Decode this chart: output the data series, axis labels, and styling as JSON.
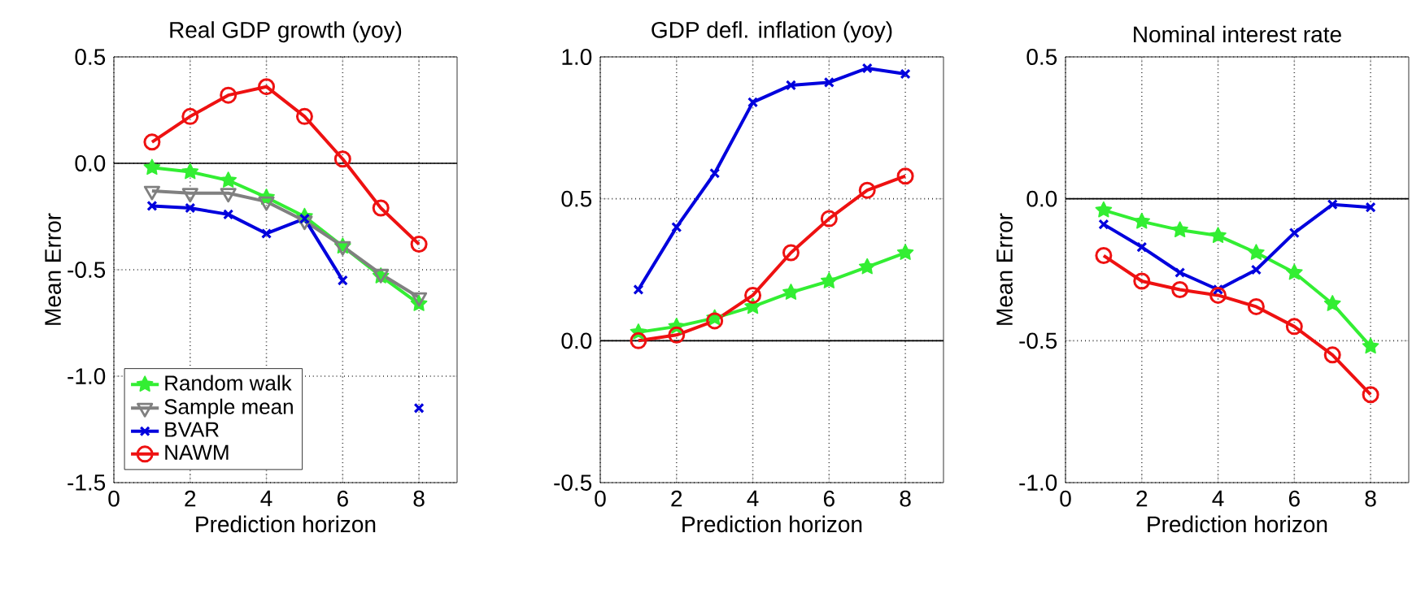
{
  "chart_data": [
    {
      "type": "line",
      "title": "Real GDP growth (yoy)",
      "xlabel": "Prediction horizon",
      "ylabel": "Mean Error",
      "x": [
        1,
        2,
        3,
        4,
        5,
        6,
        7,
        8
      ],
      "xlim": [
        0,
        9
      ],
      "xticks": [
        0,
        2,
        4,
        6,
        8
      ],
      "ylim": [
        -1.5,
        0.5
      ],
      "yticks": [
        {
          "value": -1.5,
          "label": "-1.5"
        },
        {
          "value": -1,
          "label": "-1.0"
        },
        {
          "value": -0.5,
          "label": "-0.5"
        },
        {
          "value": 0,
          "label": "0.0"
        },
        {
          "value": 0.5,
          "label": "0.5"
        }
      ],
      "grid": true,
      "legend": "bottom left",
      "line_style": "solid",
      "ref_lines": [
        {
          "axis": "y",
          "value": 0,
          "color": "#000000"
        }
      ],
      "series": [
        {
          "name": "Random walk",
          "color": "#33ee33",
          "marker": "star",
          "values": [
            -0.02,
            -0.04,
            -0.08,
            -0.16,
            -0.25,
            -0.39,
            -0.53,
            -0.66
          ]
        },
        {
          "name": "Sample mean",
          "color": "#808080",
          "marker": "triangle",
          "values": [
            -0.13,
            -0.14,
            -0.14,
            -0.18,
            -0.27,
            -0.39,
            -0.52,
            -0.63
          ]
        },
        {
          "name": "BVAR",
          "color": "#0000dd",
          "marker": "cross",
          "values": [
            -0.2,
            -0.21,
            -0.24,
            -0.33,
            -0.26,
            -0.55,
            null,
            -1.15
          ]
        },
        {
          "name": "NAWM",
          "color": "#ee1111",
          "marker": "circle",
          "values": [
            0.1,
            0.22,
            0.32,
            0.36,
            0.22,
            0.02,
            -0.21,
            -0.38
          ]
        }
      ]
    },
    {
      "type": "line",
      "title": "GDP defl. inflation (yoy)",
      "xlabel": "Prediction horizon",
      "x": [
        1,
        2,
        3,
        4,
        5,
        6,
        7,
        8
      ],
      "xlim": [
        0,
        9
      ],
      "xticks": [
        0,
        2,
        4,
        6,
        8
      ],
      "ylim": [
        -0.5,
        1
      ],
      "yticks": [
        {
          "value": -0.5,
          "label": "-0.5"
        },
        {
          "value": 0,
          "label": "0.0"
        },
        {
          "value": 0.5,
          "label": "0.5"
        },
        {
          "value": 1,
          "label": "1.0"
        }
      ],
      "grid": true,
      "line_style": "solid",
      "ref_lines": [
        {
          "axis": "y",
          "value": 0,
          "color": "#000000"
        }
      ],
      "series": [
        {
          "color": "#33ee33",
          "marker": "star",
          "values": [
            0.03,
            0.05,
            0.08,
            0.12,
            0.17,
            0.21,
            0.26,
            0.31
          ]
        },
        {
          "color": "#0000dd",
          "marker": "cross",
          "values": [
            0.18,
            0.4,
            0.59,
            0.84,
            0.9,
            0.91,
            0.96,
            0.94
          ]
        },
        {
          "color": "#ee1111",
          "marker": "circle",
          "values": [
            0.0,
            0.02,
            0.07,
            0.16,
            0.31,
            0.43,
            0.53,
            0.58
          ]
        }
      ]
    },
    {
      "type": "line",
      "title": "Nominal interest rate",
      "xlabel": "Prediction horizon",
      "ylabel": "Mean Error",
      "x": [
        1,
        2,
        3,
        4,
        5,
        6,
        7,
        8
      ],
      "xlim": [
        0,
        9
      ],
      "xticks": [
        0,
        2,
        4,
        6,
        8
      ],
      "ylim": [
        -1,
        0.5
      ],
      "yticks": [
        {
          "value": -1,
          "label": "-1.0"
        },
        {
          "value": -0.5,
          "label": "-0.5"
        },
        {
          "value": 0,
          "label": "0.0"
        },
        {
          "value": 0.5,
          "label": "0.5"
        }
      ],
      "grid": true,
      "line_style": "solid",
      "ref_lines": [
        {
          "axis": "y",
          "value": 0,
          "color": "#000000"
        }
      ],
      "series": [
        {
          "color": "#33ee33",
          "marker": "star",
          "values": [
            -0.04,
            -0.08,
            -0.11,
            -0.13,
            -0.19,
            -0.26,
            -0.37,
            -0.52
          ]
        },
        {
          "color": "#0000dd",
          "marker": "cross",
          "values": [
            -0.09,
            -0.17,
            -0.26,
            -0.32,
            -0.25,
            -0.12,
            -0.02,
            -0.03
          ]
        },
        {
          "color": "#ee1111",
          "marker": "circle",
          "values": [
            -0.2,
            -0.29,
            -0.32,
            -0.34,
            -0.38,
            -0.45,
            -0.55,
            -0.69
          ]
        }
      ]
    }
  ]
}
